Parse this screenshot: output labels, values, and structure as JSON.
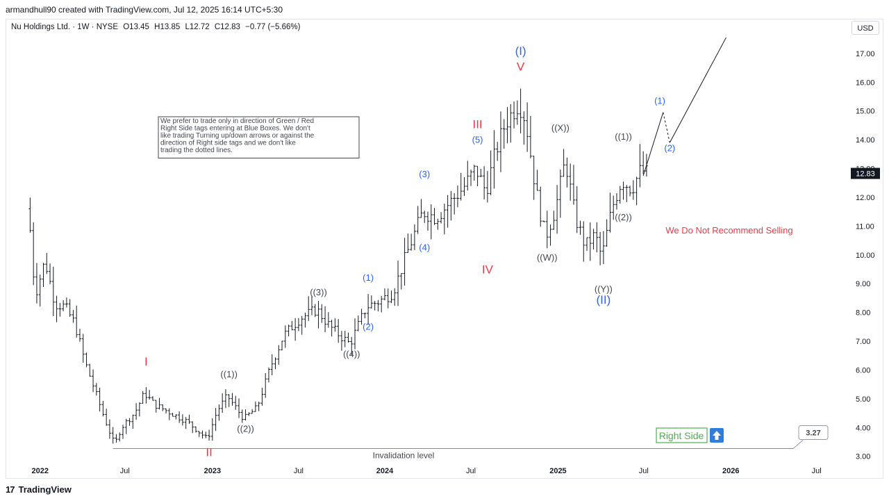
{
  "header": {
    "credit": "armandhull90 created with TradingView.com, Jul 12, 2025 16:14 UTC+5:30"
  },
  "symbol": {
    "name": "Nu Holdings Ltd. · 1W · NYSE",
    "open": "O13.45",
    "high": "H13.85",
    "low": "L12.72",
    "close": "C12.83",
    "change": "−0.77 (−5.66%)"
  },
  "currency_button": "USD",
  "footer": {
    "brand": "TradingView",
    "logo_icon": "tradingview-logo-icon"
  },
  "colors": {
    "wave_blue": "#2962ff",
    "wave_red": "#f23645",
    "green": "#4caf50",
    "bars": "#131722",
    "text_gray": "#434651"
  },
  "chart_data": {
    "type": "ohlc",
    "title": "",
    "ylim": [
      2.8,
      17.6
    ],
    "y_ticks": [
      "17.00",
      "16.00",
      "15.00",
      "14.00",
      "13.00",
      "12.00",
      "11.00",
      "10.00",
      "9.00",
      "8.00",
      "7.00",
      "6.00",
      "5.00",
      "4.00",
      "3.00"
    ],
    "x_ticks": [
      "2022",
      "Jul",
      "2023",
      "Jul",
      "2024",
      "Jul",
      "2025",
      "Jul",
      "2026",
      "Jul"
    ],
    "last_price": "12.83",
    "note": "We prefer to trade only in direction of Green / Red Right Side tags entering at Blue Boxes. We don't like trading Turning up/down arrows or against the direction of Right side tags and we don't like trading the dotted lines.",
    "recommendation": "We Do Not Recommend Selling",
    "invalidation": {
      "label": "Invalidation level",
      "value": 3.27,
      "value_label": "3.27"
    },
    "right_side_label": "Right Side",
    "wave_labels": [
      {
        "text": "I",
        "date": "2022-08-15",
        "price": 6.15,
        "color": "red"
      },
      {
        "text": "II",
        "date": "2022-12-26",
        "price": 3.0,
        "color": "red"
      },
      {
        "text": "((1))",
        "date": "2023-02-06",
        "price": 5.75,
        "color": "gray"
      },
      {
        "text": "((2))",
        "date": "2023-03-13",
        "price": 3.85,
        "color": "gray"
      },
      {
        "text": "((3))",
        "date": "2023-08-14",
        "price": 8.6,
        "color": "gray"
      },
      {
        "text": "((4))",
        "date": "2023-10-23",
        "price": 6.45,
        "color": "gray"
      },
      {
        "text": "(1)",
        "date": "2023-11-27",
        "price": 9.1,
        "color": "blue"
      },
      {
        "text": "(2)",
        "date": "2023-11-27",
        "price": 7.4,
        "color": "blue"
      },
      {
        "text": "(3)",
        "date": "2024-03-25",
        "price": 12.7,
        "color": "blue"
      },
      {
        "text": "(4)",
        "date": "2024-03-25",
        "price": 10.15,
        "color": "blue"
      },
      {
        "text": "(5)",
        "date": "2024-07-15",
        "price": 13.9,
        "color": "blue"
      },
      {
        "text": "III",
        "date": "2024-07-15",
        "price": 14.4,
        "color": "red"
      },
      {
        "text": "IV",
        "date": "2024-08-05",
        "price": 9.35,
        "color": "red"
      },
      {
        "text": "V",
        "date": "2024-10-14",
        "price": 16.4,
        "color": "red"
      },
      {
        "text": "(I)",
        "date": "2024-10-14",
        "price": 16.95,
        "color": "blue"
      },
      {
        "text": "((X))",
        "date": "2025-01-06",
        "price": 14.3,
        "color": "gray"
      },
      {
        "text": "((W))",
        "date": "2024-12-09",
        "price": 9.8,
        "color": "gray"
      },
      {
        "text": "((Y))",
        "date": "2025-04-07",
        "price": 8.7,
        "color": "gray"
      },
      {
        "text": "(II)",
        "date": "2025-04-07",
        "price": 8.3,
        "color": "blue"
      },
      {
        "text": "((1))",
        "date": "2025-05-19",
        "price": 14.0,
        "color": "gray"
      },
      {
        "text": "((2))",
        "date": "2025-05-19",
        "price": 11.2,
        "color": "gray"
      },
      {
        "text": "(1)",
        "date": "2025-08-04",
        "price": 15.25,
        "color": "blue"
      },
      {
        "text": "(2)",
        "date": "2025-08-25",
        "price": 13.6,
        "color": "blue"
      }
    ],
    "projection": [
      {
        "date": "2025-06-30",
        "price": 12.75
      },
      {
        "date": "2025-08-11",
        "price": 14.95
      },
      {
        "date": "2025-08-25",
        "price": 13.9
      },
      {
        "date": "2025-12-22",
        "price": 17.55
      }
    ],
    "projection_dashed_segment": 1,
    "price_path": [
      [
        "2021-12-13",
        11.6
      ],
      [
        "2021-12-27",
        8.6
      ],
      [
        "2022-01-17",
        9.8
      ],
      [
        "2022-02-07",
        8.3
      ],
      [
        "2022-02-28",
        8.2
      ],
      [
        "2022-03-21",
        7.6
      ],
      [
        "2022-04-11",
        6.3
      ],
      [
        "2022-05-02",
        5.3
      ],
      [
        "2022-05-23",
        4.3
      ],
      [
        "2022-06-13",
        3.4
      ],
      [
        "2022-06-27",
        4.0
      ],
      [
        "2022-07-25",
        4.5
      ],
      [
        "2022-08-15",
        5.2
      ],
      [
        "2022-09-05",
        4.8
      ],
      [
        "2022-10-10",
        4.5
      ],
      [
        "2022-11-14",
        4.2
      ],
      [
        "2022-12-26",
        3.6
      ],
      [
        "2023-01-16",
        4.6
      ],
      [
        "2023-02-06",
        5.1
      ],
      [
        "2023-03-13",
        4.3
      ],
      [
        "2023-04-10",
        4.7
      ],
      [
        "2023-05-08",
        6.1
      ],
      [
        "2023-06-05",
        7.2
      ],
      [
        "2023-07-10",
        7.8
      ],
      [
        "2023-08-14",
        8.1
      ],
      [
        "2023-09-11",
        7.5
      ],
      [
        "2023-10-23",
        6.9
      ],
      [
        "2023-11-27",
        8.2
      ],
      [
        "2023-12-25",
        8.4
      ],
      [
        "2024-01-22",
        8.7
      ],
      [
        "2024-02-19",
        10.0
      ],
      [
        "2024-03-25",
        11.5
      ],
      [
        "2024-04-22",
        11.3
      ],
      [
        "2024-05-20",
        11.8
      ],
      [
        "2024-06-17",
        12.3
      ],
      [
        "2024-07-15",
        13.0
      ],
      [
        "2024-08-05",
        12.2
      ],
      [
        "2024-08-26",
        13.6
      ],
      [
        "2024-09-16",
        14.6
      ],
      [
        "2024-10-14",
        15.3
      ],
      [
        "2024-10-28",
        14.7
      ],
      [
        "2024-11-18",
        12.3
      ],
      [
        "2024-12-09",
        10.6
      ],
      [
        "2024-12-30",
        11.6
      ],
      [
        "2025-01-20",
        13.3
      ],
      [
        "2025-02-10",
        11.3
      ],
      [
        "2025-03-03",
        10.3
      ],
      [
        "2025-03-24",
        10.7
      ],
      [
        "2025-04-07",
        9.9
      ],
      [
        "2025-04-28",
        11.6
      ],
      [
        "2025-05-19",
        12.6
      ],
      [
        "2025-06-09",
        12.3
      ],
      [
        "2025-06-30",
        13.0
      ],
      [
        "2025-07-07",
        12.83
      ]
    ]
  }
}
